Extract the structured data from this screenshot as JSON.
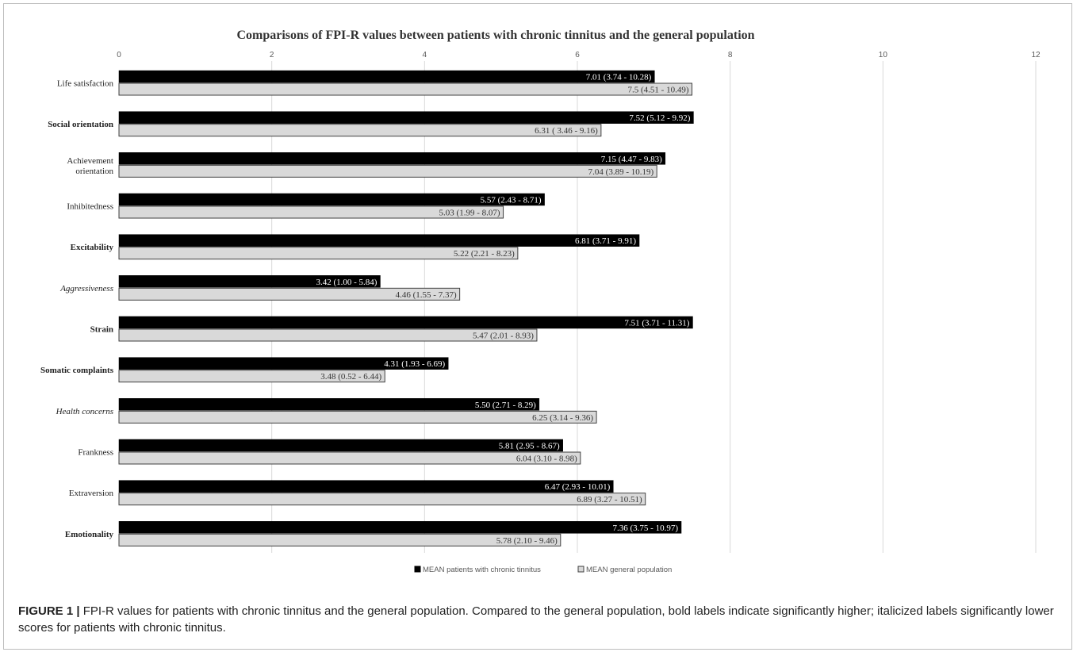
{
  "chart_data": {
    "type": "bar",
    "orientation": "horizontal",
    "title": "Comparisons of FPI-R values between patients with chronic tinnitus and the general population",
    "xlim": [
      0,
      12
    ],
    "x_ticks": [
      0,
      2,
      4,
      6,
      8,
      10,
      12
    ],
    "grid": "vertical",
    "legend_position": "bottom",
    "categories": [
      "Life satisfaction",
      "Social orientation",
      "Achievement orientation",
      "Inhibitedness",
      "Excitability",
      "Aggressiveness",
      "Strain",
      "Somatic complaints",
      "Health concerns",
      "Frankness",
      "Extraversion",
      "Emotionality"
    ],
    "category_styles": [
      "normal",
      "bold",
      "normal",
      "normal",
      "bold",
      "italic",
      "bold",
      "bold",
      "italic",
      "normal",
      "normal",
      "bold"
    ],
    "series": [
      {
        "name": "MEAN patients with chronic tinnitus",
        "color": "#000000",
        "values": [
          7.01,
          7.52,
          7.15,
          5.57,
          6.81,
          3.42,
          7.51,
          4.31,
          5.5,
          5.81,
          6.47,
          7.36
        ],
        "labels": [
          "7.01 (3.74 - 10.28)",
          "7.52 (5.12 - 9.92)",
          "7.15 (4.47 - 9.83)",
          "5.57 (2.43 - 8.71)",
          "6.81 (3.71 - 9.91)",
          "3.42 (1.00 - 5.84)",
          "7.51 (3.71 - 11.31)",
          "4.31 (1.93 - 6.69)",
          "5.50 (2.71 - 8.29)",
          "5.81 (2.95 - 8.67)",
          "6.47 (2.93 - 10.01)",
          "7.36 (3.75 - 10.97)"
        ]
      },
      {
        "name": "MEAN general population",
        "color": "#d9d9d9",
        "values": [
          7.5,
          6.31,
          7.04,
          5.03,
          5.22,
          4.46,
          5.47,
          3.48,
          6.25,
          6.04,
          6.89,
          5.78
        ],
        "labels": [
          "7.5 (4.51 - 10.49)",
          "6.31 ( 3.46 - 9.16)",
          "7.04 (3.89 - 10.19)",
          "5.03 (1.99 - 8.07)",
          "5.22 (2.21 - 8.23)",
          "4.46 (1.55 - 7.37)",
          "5.47 (2.01 - 8.93)",
          "3.48 (0.52 - 6.44)",
          "6.25 (3.14 - 9.36)",
          "6.04 (3.10 - 8.98)",
          "6.89 (3.27 - 10.51)",
          "5.78 (2.10 - 9.46)"
        ]
      }
    ]
  },
  "caption": {
    "label": "FIGURE 1 |",
    "text": " FPI-R values for patients with chronic tinnitus and the general population. Compared to the general population, bold labels indicate significantly higher; italicized labels significantly lower scores for patients with chronic tinnitus."
  }
}
